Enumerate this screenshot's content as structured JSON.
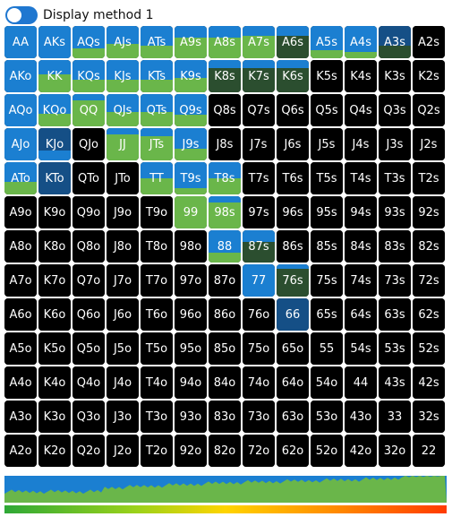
{
  "toggle": {
    "label": "Display method 1",
    "on": true
  },
  "colors": {
    "raise": "#1b7fd1",
    "call": "#6ab64a",
    "dark": "#2b4e2f",
    "navy": "#154f86",
    "fold": "#000000"
  },
  "hands": [
    [
      "AA",
      "AKs",
      "AQs",
      "AJs",
      "ATs",
      "A9s",
      "A8s",
      "A7s",
      "A6s",
      "A5s",
      "A4s",
      "A3s",
      "A2s"
    ],
    [
      "AKo",
      "KK",
      "KQs",
      "KJs",
      "KTs",
      "K9s",
      "K8s",
      "K7s",
      "K6s",
      "K5s",
      "K4s",
      "K3s",
      "K2s"
    ],
    [
      "AQo",
      "KQo",
      "QQ",
      "QJs",
      "QTs",
      "Q9s",
      "Q8s",
      "Q7s",
      "Q6s",
      "Q5s",
      "Q4s",
      "Q3s",
      "Q2s"
    ],
    [
      "AJo",
      "KJo",
      "QJo",
      "JJ",
      "JTs",
      "J9s",
      "J8s",
      "J7s",
      "J6s",
      "J5s",
      "J4s",
      "J3s",
      "J2s"
    ],
    [
      "ATo",
      "KTo",
      "QTo",
      "JTo",
      "TT",
      "T9s",
      "T8s",
      "T7s",
      "T6s",
      "T5s",
      "T4s",
      "T3s",
      "T2s"
    ],
    [
      "A9o",
      "K9o",
      "Q9o",
      "J9o",
      "T9o",
      "99",
      "98s",
      "97s",
      "96s",
      "95s",
      "94s",
      "93s",
      "92s"
    ],
    [
      "A8o",
      "K8o",
      "Q8o",
      "J8o",
      "T8o",
      "98o",
      "88",
      "87s",
      "86s",
      "85s",
      "84s",
      "83s",
      "82s"
    ],
    [
      "A7o",
      "K7o",
      "Q7o",
      "J7o",
      "T7o",
      "97o",
      "87o",
      "77",
      "76s",
      "75s",
      "74s",
      "73s",
      "72s"
    ],
    [
      "A6o",
      "K6o",
      "Q6o",
      "J6o",
      "T6o",
      "96o",
      "86o",
      "76o",
      "66",
      "65s",
      "64s",
      "63s",
      "62s"
    ],
    [
      "A5o",
      "K5o",
      "Q5o",
      "J5o",
      "T5o",
      "95o",
      "85o",
      "75o",
      "65o",
      "55",
      "54s",
      "53s",
      "52s"
    ],
    [
      "A4o",
      "K4o",
      "Q4o",
      "J4o",
      "T4o",
      "94o",
      "84o",
      "74o",
      "64o",
      "54o",
      "44",
      "43s",
      "42s"
    ],
    [
      "A3o",
      "K3o",
      "Q3o",
      "J3o",
      "T3o",
      "93o",
      "83o",
      "73o",
      "63o",
      "53o",
      "43o",
      "33",
      "32s"
    ],
    [
      "A2o",
      "K2o",
      "Q2o",
      "J2o",
      "T2o",
      "92o",
      "82o",
      "72o",
      "62o",
      "52o",
      "42o",
      "32o",
      "22"
    ]
  ],
  "strategies": {
    "AA": [
      [
        1,
        "raise"
      ]
    ],
    "AKs": [
      [
        1,
        "raise"
      ]
    ],
    "AQs": [
      [
        0.7,
        "raise"
      ],
      [
        0.3,
        "call"
      ]
    ],
    "AJs": [
      [
        0.55,
        "raise"
      ],
      [
        0.45,
        "call"
      ]
    ],
    "ATs": [
      [
        0.6,
        "raise"
      ],
      [
        0.4,
        "call"
      ]
    ],
    "A9s": [
      [
        0.35,
        "raise"
      ],
      [
        0.65,
        "call"
      ]
    ],
    "A8s": [
      [
        0.35,
        "raise"
      ],
      [
        0.65,
        "call"
      ]
    ],
    "A7s": [
      [
        0.3,
        "raise"
      ],
      [
        0.7,
        "call"
      ]
    ],
    "A6s": [
      [
        0.3,
        "raise"
      ],
      [
        0.7,
        "dark"
      ]
    ],
    "A5s": [
      [
        0.75,
        "raise"
      ],
      [
        0.25,
        "call"
      ]
    ],
    "A4s": [
      [
        0.8,
        "raise"
      ],
      [
        0.2,
        "call"
      ]
    ],
    "A3s": [
      [
        0.6,
        "navy"
      ],
      [
        0.4,
        "dark"
      ]
    ],
    "AKo": [
      [
        1,
        "raise"
      ]
    ],
    "KK": [
      [
        0.45,
        "raise"
      ],
      [
        0.55,
        "call"
      ]
    ],
    "KQs": [
      [
        0.6,
        "raise"
      ],
      [
        0.4,
        "call"
      ]
    ],
    "KJs": [
      [
        0.6,
        "raise"
      ],
      [
        0.4,
        "call"
      ]
    ],
    "KTs": [
      [
        0.6,
        "raise"
      ],
      [
        0.4,
        "call"
      ]
    ],
    "K9s": [
      [
        0.55,
        "raise"
      ],
      [
        0.45,
        "call"
      ]
    ],
    "K8s": [
      [
        0.25,
        "raise"
      ],
      [
        0.75,
        "dark"
      ]
    ],
    "K7s": [
      [
        0.25,
        "raise"
      ],
      [
        0.75,
        "dark"
      ]
    ],
    "K6s": [
      [
        0.25,
        "raise"
      ],
      [
        0.75,
        "dark"
      ]
    ],
    "AQo": [
      [
        1,
        "raise"
      ]
    ],
    "KQo": [
      [
        0.6,
        "raise"
      ],
      [
        0.4,
        "call"
      ]
    ],
    "QQ": [
      [
        0.2,
        "raise"
      ],
      [
        0.8,
        "call"
      ]
    ],
    "QJs": [
      [
        0.55,
        "raise"
      ],
      [
        0.45,
        "call"
      ]
    ],
    "QTs": [
      [
        0.55,
        "raise"
      ],
      [
        0.45,
        "call"
      ]
    ],
    "Q9s": [
      [
        0.65,
        "raise"
      ],
      [
        0.35,
        "call"
      ]
    ],
    "AJo": [
      [
        1,
        "raise"
      ]
    ],
    "KJo": [
      [
        0.7,
        "navy"
      ],
      [
        0.3,
        "raise"
      ]
    ],
    "JJ": [
      [
        0.2,
        "raise"
      ],
      [
        0.8,
        "call"
      ]
    ],
    "JTs": [
      [
        0.25,
        "raise"
      ],
      [
        0.75,
        "call"
      ]
    ],
    "J9s": [
      [
        0.65,
        "raise"
      ],
      [
        0.35,
        "call"
      ]
    ],
    "ATo": [
      [
        0.6,
        "raise"
      ],
      [
        0.4,
        "call"
      ]
    ],
    "KTo": [
      [
        1,
        "navy"
      ]
    ],
    "TT": [
      [
        0.5,
        "raise"
      ],
      [
        0.5,
        "call"
      ]
    ],
    "T9s": [
      [
        0.8,
        "raise"
      ],
      [
        0.2,
        "call"
      ]
    ],
    "T8s": [
      [
        0.5,
        "raise"
      ],
      [
        0.5,
        "call"
      ]
    ],
    "99": [
      [
        1,
        "call"
      ]
    ],
    "98s": [
      [
        0.2,
        "raise"
      ],
      [
        0.8,
        "call"
      ]
    ],
    "88": [
      [
        0.7,
        "raise"
      ],
      [
        0.3,
        "call"
      ]
    ],
    "87s": [
      [
        0.35,
        "raise"
      ],
      [
        0.65,
        "dark"
      ]
    ],
    "77": [
      [
        1,
        "raise"
      ]
    ],
    "76s": [
      [
        0.15,
        "raise"
      ],
      [
        0.85,
        "dark"
      ]
    ],
    "66": [
      [
        1,
        "navy"
      ]
    ]
  },
  "strip": {
    "colors": [
      "#1b7fd1",
      "#6ab64a",
      "#ffffff"
    ],
    "gradient": [
      "#2ea836",
      "#9cd21a",
      "#ffd400",
      "#ff8a00",
      "#ff3b00"
    ]
  }
}
